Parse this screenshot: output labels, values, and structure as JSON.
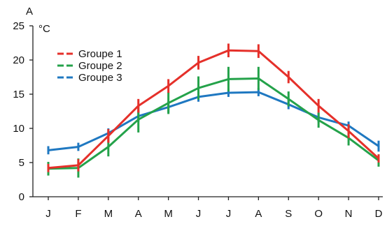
{
  "chart_data": {
    "type": "line",
    "panel_label": "A",
    "ylabel": "°C",
    "xlabel": "",
    "ylim": [
      0,
      25
    ],
    "yticks": [
      0,
      5,
      10,
      15,
      20,
      25
    ],
    "categories": [
      "J",
      "F",
      "M",
      "A",
      "M",
      "J",
      "J",
      "A",
      "S",
      "O",
      "N",
      "D"
    ],
    "grid": false,
    "legend_position": "top-left",
    "series": [
      {
        "name": "Groupe 1",
        "color": "#e5302a",
        "values": [
          4.2,
          4.6,
          8.9,
          13.3,
          16.2,
          19.6,
          21.4,
          21.3,
          17.5,
          13.3,
          9.6,
          5.6
        ],
        "errors": [
          0.6,
          0.9,
          1.0,
          1.0,
          1.0,
          1.0,
          1.0,
          1.0,
          0.9,
          1.0,
          1.0,
          0.6
        ]
      },
      {
        "name": "Groupe 2",
        "color": "#24a24a",
        "values": [
          4.1,
          4.2,
          7.3,
          11.3,
          13.7,
          15.9,
          17.2,
          17.3,
          14.3,
          11.2,
          8.6,
          5.3
        ],
        "errors": [
          1.0,
          1.4,
          1.4,
          1.9,
          1.6,
          1.7,
          1.8,
          1.7,
          1.1,
          1.1,
          1.1,
          0.9
        ]
      },
      {
        "name": "Groupe 3",
        "color": "#1f78c1",
        "values": [
          6.8,
          7.3,
          9.3,
          11.8,
          13.1,
          14.6,
          15.2,
          15.3,
          13.5,
          11.6,
          10.4,
          7.4
        ],
        "errors": [
          0.6,
          0.6,
          0.7,
          0.8,
          0.8,
          0.7,
          0.6,
          0.6,
          0.7,
          0.7,
          0.6,
          0.8
        ]
      }
    ]
  }
}
